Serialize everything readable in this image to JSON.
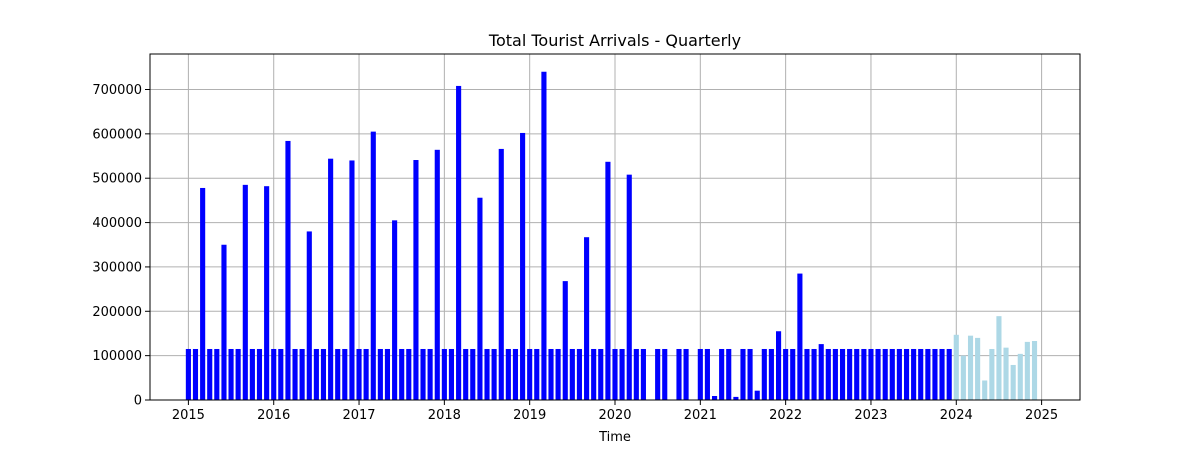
{
  "chart_data": {
    "type": "bar",
    "title": "Total Tourist Arrivals - Quarterly",
    "xlabel": "Time",
    "ylabel": "",
    "xlim": [
      2014.55,
      2025.45
    ],
    "ylim": [
      0,
      780000
    ],
    "x_ticks": [
      2015,
      2016,
      2017,
      2018,
      2019,
      2020,
      2021,
      2022,
      2023,
      2024,
      2025
    ],
    "x_tick_labels": [
      "2015",
      "2016",
      "2017",
      "2018",
      "2019",
      "2020",
      "2021",
      "2022",
      "2023",
      "2024",
      "2025"
    ],
    "y_ticks": [
      0,
      100000,
      200000,
      300000,
      400000,
      500000,
      600000,
      700000
    ],
    "y_tick_labels": [
      "0",
      "100000",
      "200000",
      "300000",
      "400000",
      "500000",
      "600000",
      "700000"
    ],
    "grid": true,
    "bar_width_years": 0.06,
    "colors": {
      "historical": "#0000ff",
      "forecast": "#add8e6",
      "grid": "#b0b0b0",
      "axis": "#000000"
    },
    "series": [
      {
        "values": [
          [
            2015.0,
            115000
          ],
          [
            2015.083,
            115000
          ],
          [
            2015.167,
            478000
          ],
          [
            2015.25,
            115000
          ],
          [
            2015.333,
            115000
          ],
          [
            2015.417,
            350000
          ],
          [
            2015.5,
            115000
          ],
          [
            2015.583,
            115000
          ],
          [
            2015.667,
            485000
          ],
          [
            2015.75,
            115000
          ],
          [
            2015.833,
            115000
          ],
          [
            2015.917,
            482000
          ],
          [
            2016.0,
            115000
          ],
          [
            2016.083,
            115000
          ],
          [
            2016.167,
            584000
          ],
          [
            2016.25,
            115000
          ],
          [
            2016.333,
            115000
          ],
          [
            2016.417,
            380000
          ],
          [
            2016.5,
            115000
          ],
          [
            2016.583,
            115000
          ],
          [
            2016.667,
            544000
          ],
          [
            2016.75,
            115000
          ],
          [
            2016.833,
            115000
          ],
          [
            2016.917,
            540000
          ],
          [
            2017.0,
            115000
          ],
          [
            2017.083,
            115000
          ],
          [
            2017.167,
            605000
          ],
          [
            2017.25,
            115000
          ],
          [
            2017.333,
            115000
          ],
          [
            2017.417,
            405000
          ],
          [
            2017.5,
            115000
          ],
          [
            2017.583,
            115000
          ],
          [
            2017.667,
            541000
          ],
          [
            2017.75,
            115000
          ],
          [
            2017.833,
            115000
          ],
          [
            2017.917,
            564000
          ],
          [
            2018.0,
            115000
          ],
          [
            2018.083,
            115000
          ],
          [
            2018.167,
            708000
          ],
          [
            2018.25,
            115000
          ],
          [
            2018.333,
            115000
          ],
          [
            2018.417,
            456000
          ],
          [
            2018.5,
            115000
          ],
          [
            2018.583,
            115000
          ],
          [
            2018.667,
            566000
          ],
          [
            2018.75,
            115000
          ],
          [
            2018.833,
            115000
          ],
          [
            2018.917,
            602000
          ],
          [
            2019.0,
            115000
          ],
          [
            2019.083,
            115000
          ],
          [
            2019.167,
            740000
          ],
          [
            2019.25,
            115000
          ],
          [
            2019.333,
            115000
          ],
          [
            2019.417,
            268000
          ],
          [
            2019.5,
            115000
          ],
          [
            2019.583,
            115000
          ],
          [
            2019.667,
            367000
          ],
          [
            2019.75,
            115000
          ],
          [
            2019.833,
            115000
          ],
          [
            2019.917,
            537000
          ],
          [
            2020.0,
            115000
          ],
          [
            2020.083,
            115000
          ],
          [
            2020.167,
            508000
          ],
          [
            2020.25,
            115000
          ],
          [
            2020.333,
            115000
          ],
          [
            2020.417,
            0
          ],
          [
            2020.5,
            115000
          ],
          [
            2020.583,
            115000
          ],
          [
            2020.667,
            0
          ],
          [
            2020.75,
            115000
          ],
          [
            2020.833,
            115000
          ],
          [
            2020.917,
            1000
          ],
          [
            2021.0,
            115000
          ],
          [
            2021.083,
            115000
          ],
          [
            2021.167,
            9000
          ],
          [
            2021.25,
            115000
          ],
          [
            2021.333,
            115000
          ],
          [
            2021.417,
            7000
          ],
          [
            2021.5,
            115000
          ],
          [
            2021.583,
            115000
          ],
          [
            2021.667,
            21000
          ],
          [
            2021.75,
            115000
          ],
          [
            2021.833,
            115000
          ],
          [
            2021.917,
            155000
          ],
          [
            2022.0,
            115000
          ],
          [
            2022.083,
            115000
          ],
          [
            2022.167,
            285000
          ],
          [
            2022.25,
            115000
          ],
          [
            2022.333,
            115000
          ],
          [
            2022.417,
            126000
          ],
          [
            2022.5,
            115000
          ],
          [
            2022.583,
            115000
          ],
          [
            2022.667,
            115000
          ],
          [
            2022.75,
            115000
          ],
          [
            2022.833,
            115000
          ],
          [
            2022.917,
            115000
          ],
          [
            2023.0,
            115000
          ],
          [
            2023.083,
            115000
          ],
          [
            2023.167,
            115000
          ],
          [
            2023.25,
            115000
          ],
          [
            2023.333,
            115000
          ],
          [
            2023.417,
            115000
          ],
          [
            2023.5,
            115000
          ],
          [
            2023.583,
            115000
          ],
          [
            2023.667,
            115000
          ],
          [
            2023.75,
            115000
          ],
          [
            2023.833,
            115000
          ],
          [
            2023.917,
            115000
          ]
        ],
        "color": "#0000ff"
      },
      {
        "values": [
          [
            2024.0,
            147000
          ],
          [
            2024.083,
            100000
          ],
          [
            2024.167,
            145000
          ],
          [
            2024.25,
            140000
          ],
          [
            2024.333,
            44000
          ],
          [
            2024.417,
            115000
          ],
          [
            2024.5,
            189000
          ],
          [
            2024.583,
            118000
          ],
          [
            2024.667,
            79000
          ],
          [
            2024.75,
            104000
          ],
          [
            2024.833,
            131000
          ],
          [
            2024.917,
            133000
          ]
        ],
        "color": "#add8e6"
      }
    ]
  }
}
